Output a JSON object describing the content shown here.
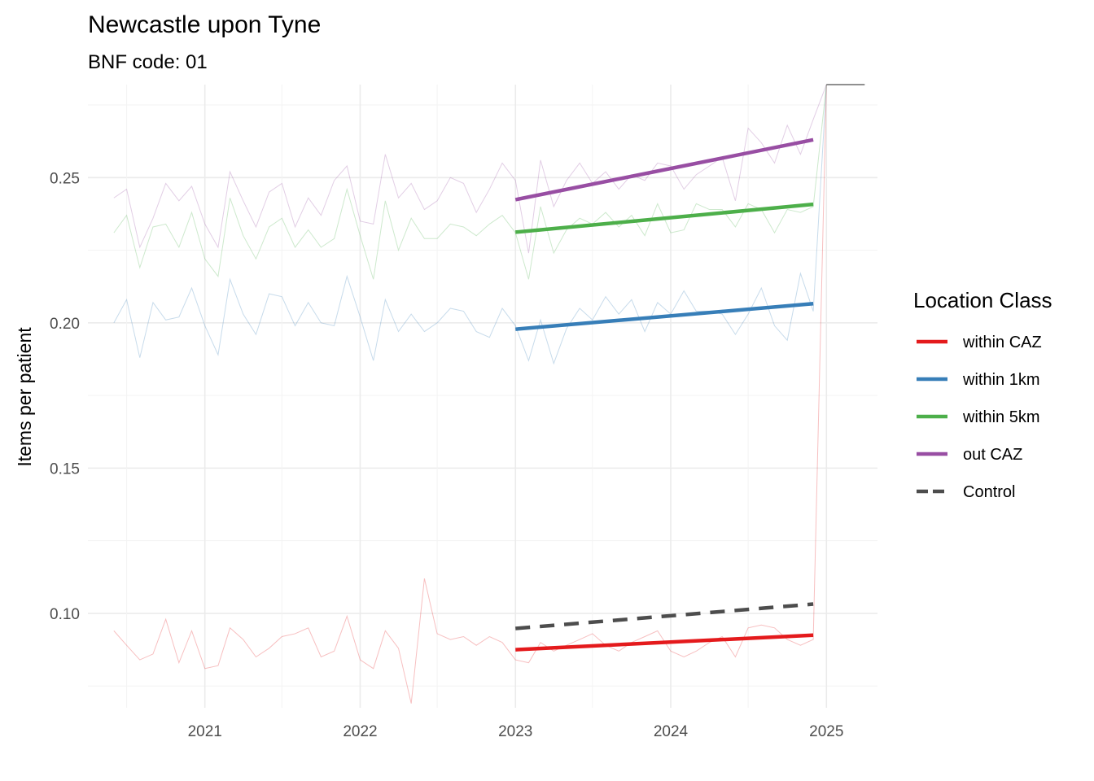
{
  "chart_data": {
    "type": "line",
    "title": "Newcastle upon Tyne",
    "subtitle": "BNF code: 01",
    "xlabel": "",
    "ylabel": "Items per patient",
    "xlim": [
      "2020-04-01",
      "2025-05-01"
    ],
    "ylim": [
      0.0675,
      0.282
    ],
    "x_ticks": [
      "2021",
      "2022",
      "2023",
      "2024",
      "2025"
    ],
    "y_ticks": [
      "0.10",
      "0.15",
      "0.20",
      "0.25"
    ],
    "grid": true,
    "legend": {
      "title": "Location Class",
      "position": "right",
      "entries": [
        {
          "label": "within CAZ",
          "color": "#E41A1C",
          "dash": "solid"
        },
        {
          "label": "within 1km",
          "color": "#377EB8",
          "dash": "solid"
        },
        {
          "label": "within 5km",
          "color": "#4DAF4A",
          "dash": "solid"
        },
        {
          "label": "out CAZ",
          "color": "#984EA3",
          "dash": "solid"
        },
        {
          "label": "Control",
          "color": "#4D4D4D",
          "dash": "dashed"
        }
      ]
    },
    "raw_series": [
      {
        "color": "#E41A1C",
        "x": [
          "2020-06",
          "2020-07",
          "2020-08",
          "2020-09",
          "2020-10",
          "2020-11",
          "2020-12",
          "2021-01",
          "2021-02",
          "2021-03",
          "2021-04",
          "2021-05",
          "2021-06",
          "2021-07",
          "2021-08",
          "2021-09",
          "2021-10",
          "2021-11",
          "2021-12",
          "2022-01",
          "2022-02",
          "2022-03",
          "2022-04",
          "2022-05",
          "2022-06",
          "2022-07",
          "2022-08",
          "2022-09",
          "2022-10",
          "2022-11",
          "2022-12",
          "2023-01",
          "2023-02",
          "2023-03",
          "2023-04",
          "2023-05",
          "2023-06",
          "2023-07",
          "2023-08",
          "2023-09",
          "2023-10",
          "2023-11",
          "2023-12",
          "2024-01",
          "2024-02",
          "2024-03",
          "2024-04",
          "2024-05",
          "2024-06",
          "2024-07",
          "2024-08",
          "2024-09",
          "2024-10",
          "2024-11",
          "2024-12",
          "2025-01"
        ],
        "y": [
          0.094,
          0.089,
          0.084,
          0.086,
          0.098,
          0.083,
          0.094,
          0.081,
          0.082,
          0.095,
          0.091,
          0.085,
          0.088,
          0.092,
          0.093,
          0.095,
          0.085,
          0.087,
          0.099,
          0.084,
          0.081,
          0.094,
          0.088,
          0.069,
          0.112,
          0.093,
          0.091,
          0.092,
          0.089,
          0.092,
          0.09,
          0.084,
          0.083,
          0.09,
          0.087,
          0.089,
          0.091,
          0.093,
          0.089,
          0.087,
          0.09,
          0.092,
          0.094,
          0.087,
          0.085,
          0.087,
          0.09,
          0.092,
          0.085,
          0.095,
          0.096,
          0.095,
          0.091,
          0.089,
          0.091,
          0.282
        ]
      },
      {
        "color": "#377EB8",
        "x": [
          "2020-06",
          "2020-07",
          "2020-08",
          "2020-09",
          "2020-10",
          "2020-11",
          "2020-12",
          "2021-01",
          "2021-02",
          "2021-03",
          "2021-04",
          "2021-05",
          "2021-06",
          "2021-07",
          "2021-08",
          "2021-09",
          "2021-10",
          "2021-11",
          "2021-12",
          "2022-01",
          "2022-02",
          "2022-03",
          "2022-04",
          "2022-05",
          "2022-06",
          "2022-07",
          "2022-08",
          "2022-09",
          "2022-10",
          "2022-11",
          "2022-12",
          "2023-01",
          "2023-02",
          "2023-03",
          "2023-04",
          "2023-05",
          "2023-06",
          "2023-07",
          "2023-08",
          "2023-09",
          "2023-10",
          "2023-11",
          "2023-12",
          "2024-01",
          "2024-02",
          "2024-03",
          "2024-04",
          "2024-05",
          "2024-06",
          "2024-07",
          "2024-08",
          "2024-09",
          "2024-10",
          "2024-11",
          "2024-12",
          "2025-01"
        ],
        "y": [
          0.2,
          0.208,
          0.188,
          0.207,
          0.201,
          0.202,
          0.212,
          0.199,
          0.189,
          0.215,
          0.203,
          0.196,
          0.21,
          0.209,
          0.199,
          0.207,
          0.2,
          0.199,
          0.216,
          0.202,
          0.187,
          0.208,
          0.197,
          0.203,
          0.197,
          0.2,
          0.205,
          0.204,
          0.197,
          0.195,
          0.205,
          0.199,
          0.187,
          0.201,
          0.186,
          0.198,
          0.205,
          0.201,
          0.209,
          0.203,
          0.208,
          0.197,
          0.207,
          0.203,
          0.211,
          0.204,
          0.204,
          0.203,
          0.196,
          0.203,
          0.212,
          0.199,
          0.194,
          0.217,
          0.204,
          0.282
        ]
      },
      {
        "color": "#4DAF4A",
        "x": [
          "2020-06",
          "2020-07",
          "2020-08",
          "2020-09",
          "2020-10",
          "2020-11",
          "2020-12",
          "2021-01",
          "2021-02",
          "2021-03",
          "2021-04",
          "2021-05",
          "2021-06",
          "2021-07",
          "2021-08",
          "2021-09",
          "2021-10",
          "2021-11",
          "2021-12",
          "2022-01",
          "2022-02",
          "2022-03",
          "2022-04",
          "2022-05",
          "2022-06",
          "2022-07",
          "2022-08",
          "2022-09",
          "2022-10",
          "2022-11",
          "2022-12",
          "2023-01",
          "2023-02",
          "2023-03",
          "2023-04",
          "2023-05",
          "2023-06",
          "2023-07",
          "2023-08",
          "2023-09",
          "2023-10",
          "2023-11",
          "2023-12",
          "2024-01",
          "2024-02",
          "2024-03",
          "2024-04",
          "2024-05",
          "2024-06",
          "2024-07",
          "2024-08",
          "2024-09",
          "2024-10",
          "2024-11",
          "2024-12",
          "2025-01"
        ],
        "y": [
          0.231,
          0.237,
          0.219,
          0.233,
          0.234,
          0.226,
          0.238,
          0.222,
          0.216,
          0.243,
          0.23,
          0.222,
          0.233,
          0.236,
          0.226,
          0.232,
          0.226,
          0.229,
          0.246,
          0.23,
          0.215,
          0.242,
          0.225,
          0.236,
          0.229,
          0.229,
          0.234,
          0.233,
          0.23,
          0.234,
          0.237,
          0.231,
          0.215,
          0.24,
          0.224,
          0.232,
          0.236,
          0.234,
          0.238,
          0.233,
          0.237,
          0.23,
          0.241,
          0.231,
          0.232,
          0.241,
          0.239,
          0.239,
          0.233,
          0.241,
          0.239,
          0.231,
          0.239,
          0.238,
          0.24,
          0.282
        ]
      },
      {
        "color": "#984EA3",
        "x": [
          "2020-06",
          "2020-07",
          "2020-08",
          "2020-09",
          "2020-10",
          "2020-11",
          "2020-12",
          "2021-01",
          "2021-02",
          "2021-03",
          "2021-04",
          "2021-05",
          "2021-06",
          "2021-07",
          "2021-08",
          "2021-09",
          "2021-10",
          "2021-11",
          "2021-12",
          "2022-01",
          "2022-02",
          "2022-03",
          "2022-04",
          "2022-05",
          "2022-06",
          "2022-07",
          "2022-08",
          "2022-09",
          "2022-10",
          "2022-11",
          "2022-12",
          "2023-01",
          "2023-02",
          "2023-03",
          "2023-04",
          "2023-05",
          "2023-06",
          "2023-07",
          "2023-08",
          "2023-09",
          "2023-10",
          "2023-11",
          "2023-12",
          "2024-01",
          "2024-02",
          "2024-03",
          "2024-04",
          "2024-05",
          "2024-06",
          "2024-07",
          "2024-08",
          "2024-09",
          "2024-10",
          "2024-11",
          "2024-12",
          "2025-01"
        ],
        "y": [
          0.243,
          0.246,
          0.226,
          0.236,
          0.248,
          0.242,
          0.247,
          0.234,
          0.226,
          0.252,
          0.242,
          0.233,
          0.245,
          0.248,
          0.233,
          0.243,
          0.237,
          0.249,
          0.254,
          0.235,
          0.234,
          0.258,
          0.243,
          0.248,
          0.239,
          0.242,
          0.25,
          0.248,
          0.238,
          0.246,
          0.255,
          0.249,
          0.224,
          0.256,
          0.24,
          0.249,
          0.255,
          0.248,
          0.252,
          0.246,
          0.251,
          0.249,
          0.255,
          0.254,
          0.246,
          0.251,
          0.254,
          0.257,
          0.242,
          0.267,
          0.262,
          0.255,
          0.268,
          0.258,
          0.27,
          0.282
        ]
      }
    ],
    "series": [
      {
        "name": "within CAZ",
        "color": "#E41A1C",
        "dash": "solid",
        "x": [
          "2023-01",
          "2024-12"
        ],
        "y": [
          0.0875,
          0.0925
        ]
      },
      {
        "name": "within 1km",
        "color": "#377EB8",
        "dash": "solid",
        "x": [
          "2023-01",
          "2024-12"
        ],
        "y": [
          0.1978,
          0.2066
        ]
      },
      {
        "name": "within 5km",
        "color": "#4DAF4A",
        "dash": "solid",
        "x": [
          "2023-01",
          "2024-12"
        ],
        "y": [
          0.2312,
          0.2408
        ]
      },
      {
        "name": "out CAZ",
        "color": "#984EA3",
        "dash": "solid",
        "x": [
          "2023-01",
          "2024-12"
        ],
        "y": [
          0.2424,
          0.263
        ]
      },
      {
        "name": "Control",
        "color": "#4D4D4D",
        "dash": "dashed",
        "x": [
          "2023-01",
          "2024-12"
        ],
        "y": [
          0.0948,
          0.1032
        ]
      }
    ],
    "flat_segment": {
      "color": "#4D4D4D",
      "x": [
        "2025-01",
        "2025-04"
      ],
      "y": [
        0.282,
        0.282
      ]
    }
  }
}
